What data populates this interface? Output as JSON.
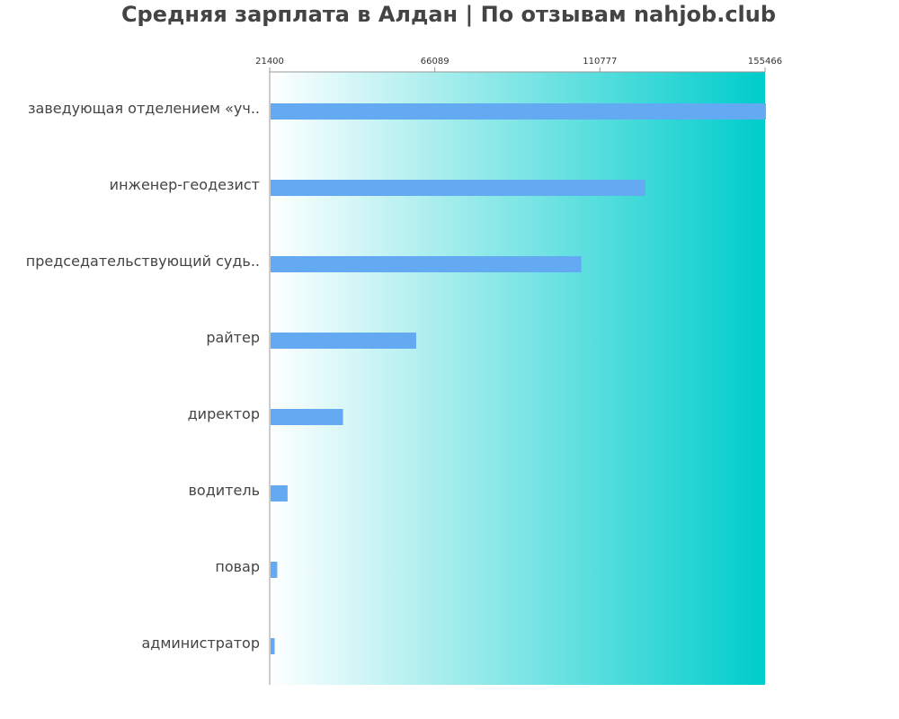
{
  "title": "Средняя зарплата в Алдан | По отзывам nahjob.club",
  "colors": {
    "bar": "#63aaf2",
    "gradient_start": "#ffffff",
    "gradient_end": "#00cccc",
    "axis": "#999999",
    "title": "#444444",
    "label": "#444444"
  },
  "chart_data": {
    "type": "bar",
    "orientation": "horizontal",
    "title": "Средняя зарплата в Алдан | По отзывам nahjob.club",
    "xlabel": "",
    "ylabel": "",
    "xlim": [
      21400,
      155466
    ],
    "ticks": [
      "21400",
      "66089",
      "110777",
      "155466"
    ],
    "tick_values": [
      21400,
      66089,
      110777,
      155466
    ],
    "categories": [
      "заведующая отделением «уч..",
      "инженер-геодезист",
      "председательствующий судь..",
      "райтер",
      "директор",
      "водитель",
      "повар",
      "администратор"
    ],
    "values": [
      155466,
      122800,
      105500,
      60800,
      41000,
      26000,
      23200,
      22500
    ],
    "grid": false,
    "legend": "none"
  }
}
